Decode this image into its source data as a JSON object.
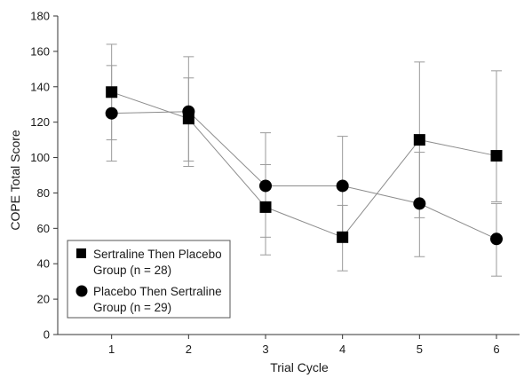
{
  "chart_data": {
    "type": "line",
    "xlabel": "Trial Cycle",
    "ylabel": "COPE Total Score",
    "x": [
      1,
      2,
      3,
      4,
      5,
      6
    ],
    "xlim": [
      0.3,
      6.3
    ],
    "ylim": [
      0,
      180
    ],
    "yticks": [
      0,
      20,
      40,
      60,
      80,
      100,
      120,
      140,
      160,
      180
    ],
    "xticks": [
      1,
      2,
      3,
      4,
      5,
      6
    ],
    "grid": false,
    "legend_position": "bottom-left",
    "series": [
      {
        "name_lines": [
          "Sertraline Then Placebo",
          "Group (n = 28)"
        ],
        "marker": "square",
        "color": "#000000",
        "values": [
          137,
          122,
          72,
          55,
          110,
          101
        ],
        "err_low": [
          110,
          98,
          45,
          36,
          66,
          75
        ],
        "err_high": [
          164,
          145,
          96,
          73,
          154,
          149
        ]
      },
      {
        "name_lines": [
          "Placebo Then Sertraline",
          "Group (n = 29)"
        ],
        "marker": "circle",
        "color": "#000000",
        "values": [
          125,
          126,
          84,
          84,
          74,
          54
        ],
        "err_low": [
          98,
          95,
          55,
          56,
          44,
          33
        ],
        "err_high": [
          152,
          157,
          114,
          112,
          103,
          74
        ]
      }
    ]
  }
}
